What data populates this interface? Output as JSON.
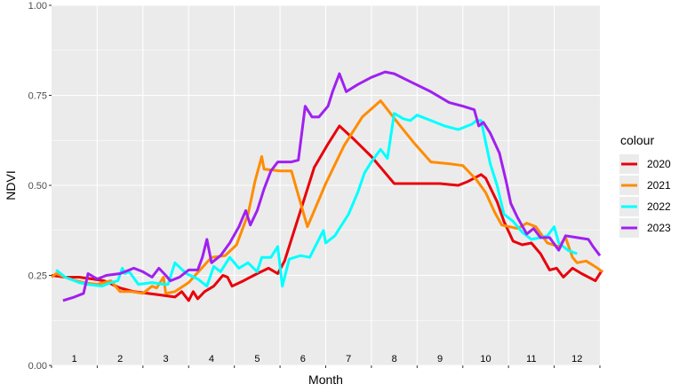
{
  "chart_data": {
    "type": "line",
    "xlabel": "Month",
    "ylabel": "NDVI",
    "xlim": [
      0.5,
      12.5
    ],
    "ylim": [
      0,
      1
    ],
    "y_ticks": [
      0.0,
      0.25,
      0.5,
      0.75,
      1.0
    ],
    "y_tick_labels": [
      "0.00",
      "0.25",
      "0.50",
      "0.75",
      "1.00"
    ],
    "month_labels": [
      "1",
      "2",
      "3",
      "4",
      "5",
      "6",
      "7",
      "8",
      "9",
      "10",
      "11",
      "12"
    ],
    "grid": true,
    "background": "#ebebeb",
    "legend": {
      "title": "colour",
      "position": "right"
    },
    "series": [
      {
        "name": "2020",
        "color": "#e8000b",
        "points": [
          [
            0.5,
            0.25
          ],
          [
            0.8,
            0.245
          ],
          [
            1.1,
            0.245
          ],
          [
            1.4,
            0.24
          ],
          [
            1.65,
            0.235
          ],
          [
            2.0,
            0.215
          ],
          [
            2.3,
            0.205
          ],
          [
            2.6,
            0.2
          ],
          [
            2.9,
            0.195
          ],
          [
            3.2,
            0.19
          ],
          [
            3.35,
            0.205
          ],
          [
            3.5,
            0.18
          ],
          [
            3.6,
            0.205
          ],
          [
            3.7,
            0.185
          ],
          [
            3.85,
            0.205
          ],
          [
            4.05,
            0.22
          ],
          [
            4.25,
            0.25
          ],
          [
            4.35,
            0.245
          ],
          [
            4.45,
            0.22
          ],
          [
            4.7,
            0.235
          ],
          [
            5.0,
            0.255
          ],
          [
            5.25,
            0.27
          ],
          [
            5.45,
            0.255
          ],
          [
            5.6,
            0.29
          ],
          [
            5.75,
            0.35
          ],
          [
            6.0,
            0.45
          ],
          [
            6.25,
            0.55
          ],
          [
            6.55,
            0.615
          ],
          [
            6.8,
            0.665
          ],
          [
            7.1,
            0.63
          ],
          [
            7.5,
            0.58
          ],
          [
            7.7,
            0.55
          ],
          [
            8.0,
            0.505
          ],
          [
            8.5,
            0.505
          ],
          [
            9.0,
            0.505
          ],
          [
            9.4,
            0.5
          ],
          [
            9.6,
            0.51
          ],
          [
            9.9,
            0.53
          ],
          [
            10.0,
            0.52
          ],
          [
            10.25,
            0.455
          ],
          [
            10.4,
            0.4
          ],
          [
            10.6,
            0.345
          ],
          [
            10.8,
            0.335
          ],
          [
            11.0,
            0.34
          ],
          [
            11.2,
            0.31
          ],
          [
            11.4,
            0.265
          ],
          [
            11.55,
            0.27
          ],
          [
            11.7,
            0.245
          ],
          [
            11.9,
            0.27
          ],
          [
            12.1,
            0.255
          ],
          [
            12.4,
            0.235
          ],
          [
            12.55,
            0.265
          ]
        ]
      },
      {
        "name": "2021",
        "color": "#ff8c00",
        "points": [
          [
            0.5,
            0.245
          ],
          [
            0.6,
            0.255
          ],
          [
            0.9,
            0.24
          ],
          [
            1.2,
            0.23
          ],
          [
            1.5,
            0.225
          ],
          [
            1.8,
            0.235
          ],
          [
            2.0,
            0.205
          ],
          [
            2.25,
            0.205
          ],
          [
            2.5,
            0.2
          ],
          [
            2.7,
            0.22
          ],
          [
            2.8,
            0.215
          ],
          [
            2.95,
            0.245
          ],
          [
            3.0,
            0.2
          ],
          [
            3.2,
            0.205
          ],
          [
            3.5,
            0.23
          ],
          [
            3.75,
            0.265
          ],
          [
            4.0,
            0.3
          ],
          [
            4.3,
            0.305
          ],
          [
            4.55,
            0.335
          ],
          [
            4.8,
            0.42
          ],
          [
            4.95,
            0.51
          ],
          [
            5.1,
            0.58
          ],
          [
            5.15,
            0.545
          ],
          [
            5.5,
            0.54
          ],
          [
            5.75,
            0.54
          ],
          [
            6.1,
            0.385
          ],
          [
            6.5,
            0.505
          ],
          [
            6.9,
            0.61
          ],
          [
            7.3,
            0.69
          ],
          [
            7.7,
            0.735
          ],
          [
            8.1,
            0.67
          ],
          [
            8.45,
            0.615
          ],
          [
            8.8,
            0.565
          ],
          [
            9.2,
            0.56
          ],
          [
            9.5,
            0.555
          ],
          [
            9.8,
            0.515
          ],
          [
            10.0,
            0.48
          ],
          [
            10.2,
            0.425
          ],
          [
            10.35,
            0.39
          ],
          [
            10.7,
            0.38
          ],
          [
            10.9,
            0.395
          ],
          [
            11.1,
            0.385
          ],
          [
            11.35,
            0.34
          ],
          [
            11.6,
            0.33
          ],
          [
            11.75,
            0.355
          ],
          [
            11.9,
            0.3
          ],
          [
            12.0,
            0.285
          ],
          [
            12.2,
            0.29
          ],
          [
            12.45,
            0.27
          ],
          [
            12.55,
            0.26
          ]
        ]
      },
      {
        "name": "2022",
        "color": "#00ffff",
        "points": [
          [
            0.6,
            0.265
          ],
          [
            0.8,
            0.245
          ],
          [
            1.1,
            0.23
          ],
          [
            1.3,
            0.225
          ],
          [
            1.6,
            0.22
          ],
          [
            1.8,
            0.23
          ],
          [
            1.95,
            0.235
          ],
          [
            2.05,
            0.27
          ],
          [
            2.1,
            0.255
          ],
          [
            2.2,
            0.26
          ],
          [
            2.4,
            0.225
          ],
          [
            2.7,
            0.23
          ],
          [
            2.95,
            0.225
          ],
          [
            3.05,
            0.225
          ],
          [
            3.2,
            0.285
          ],
          [
            3.45,
            0.255
          ],
          [
            3.7,
            0.24
          ],
          [
            3.9,
            0.22
          ],
          [
            4.05,
            0.275
          ],
          [
            4.2,
            0.26
          ],
          [
            4.4,
            0.3
          ],
          [
            4.6,
            0.27
          ],
          [
            4.8,
            0.285
          ],
          [
            5.0,
            0.26
          ],
          [
            5.1,
            0.3
          ],
          [
            5.3,
            0.3
          ],
          [
            5.45,
            0.33
          ],
          [
            5.55,
            0.22
          ],
          [
            5.7,
            0.295
          ],
          [
            5.95,
            0.305
          ],
          [
            6.15,
            0.3
          ],
          [
            6.45,
            0.375
          ],
          [
            6.5,
            0.34
          ],
          [
            6.7,
            0.36
          ],
          [
            6.8,
            0.38
          ],
          [
            7.0,
            0.42
          ],
          [
            7.2,
            0.48
          ],
          [
            7.35,
            0.535
          ],
          [
            7.5,
            0.565
          ],
          [
            7.7,
            0.6
          ],
          [
            7.85,
            0.575
          ],
          [
            8.0,
            0.7
          ],
          [
            8.2,
            0.685
          ],
          [
            8.35,
            0.68
          ],
          [
            8.5,
            0.695
          ],
          [
            8.8,
            0.68
          ],
          [
            9.1,
            0.665
          ],
          [
            9.4,
            0.655
          ],
          [
            9.7,
            0.67
          ],
          [
            9.8,
            0.68
          ],
          [
            9.9,
            0.68
          ],
          [
            10.1,
            0.56
          ],
          [
            10.25,
            0.5
          ],
          [
            10.4,
            0.42
          ],
          [
            10.6,
            0.4
          ],
          [
            10.8,
            0.37
          ],
          [
            11.0,
            0.35
          ],
          [
            11.2,
            0.355
          ],
          [
            11.35,
            0.36
          ],
          [
            11.5,
            0.385
          ],
          [
            11.6,
            0.34
          ],
          [
            11.8,
            0.32
          ],
          [
            12.0,
            0.31
          ]
        ]
      },
      {
        "name": "2023",
        "color": "#a020f0",
        "points": [
          [
            0.75,
            0.18
          ],
          [
            1.0,
            0.19
          ],
          [
            1.2,
            0.2
          ],
          [
            1.3,
            0.255
          ],
          [
            1.5,
            0.24
          ],
          [
            1.7,
            0.25
          ],
          [
            2.0,
            0.255
          ],
          [
            2.3,
            0.27
          ],
          [
            2.5,
            0.26
          ],
          [
            2.7,
            0.245
          ],
          [
            2.85,
            0.27
          ],
          [
            3.0,
            0.25
          ],
          [
            3.1,
            0.235
          ],
          [
            3.3,
            0.245
          ],
          [
            3.5,
            0.265
          ],
          [
            3.7,
            0.265
          ],
          [
            3.8,
            0.3
          ],
          [
            3.9,
            0.35
          ],
          [
            4.0,
            0.285
          ],
          [
            4.2,
            0.305
          ],
          [
            4.4,
            0.34
          ],
          [
            4.6,
            0.385
          ],
          [
            4.75,
            0.43
          ],
          [
            4.85,
            0.39
          ],
          [
            5.0,
            0.43
          ],
          [
            5.15,
            0.49
          ],
          [
            5.3,
            0.54
          ],
          [
            5.45,
            0.565
          ],
          [
            5.55,
            0.565
          ],
          [
            5.75,
            0.565
          ],
          [
            5.9,
            0.57
          ],
          [
            6.05,
            0.72
          ],
          [
            6.2,
            0.69
          ],
          [
            6.35,
            0.69
          ],
          [
            6.55,
            0.72
          ],
          [
            6.65,
            0.76
          ],
          [
            6.8,
            0.81
          ],
          [
            6.95,
            0.76
          ],
          [
            7.2,
            0.78
          ],
          [
            7.5,
            0.8
          ],
          [
            7.8,
            0.815
          ],
          [
            8.0,
            0.81
          ],
          [
            8.4,
            0.785
          ],
          [
            8.8,
            0.76
          ],
          [
            9.2,
            0.73
          ],
          [
            9.5,
            0.72
          ],
          [
            9.75,
            0.71
          ],
          [
            9.85,
            0.665
          ],
          [
            9.95,
            0.675
          ],
          [
            10.1,
            0.645
          ],
          [
            10.3,
            0.59
          ],
          [
            10.45,
            0.51
          ],
          [
            10.55,
            0.45
          ],
          [
            10.7,
            0.41
          ],
          [
            10.9,
            0.365
          ],
          [
            11.05,
            0.38
          ],
          [
            11.2,
            0.355
          ],
          [
            11.4,
            0.355
          ],
          [
            11.6,
            0.32
          ],
          [
            11.75,
            0.36
          ],
          [
            12.0,
            0.355
          ],
          [
            12.25,
            0.35
          ],
          [
            12.35,
            0.33
          ],
          [
            12.5,
            0.305
          ]
        ]
      }
    ]
  }
}
